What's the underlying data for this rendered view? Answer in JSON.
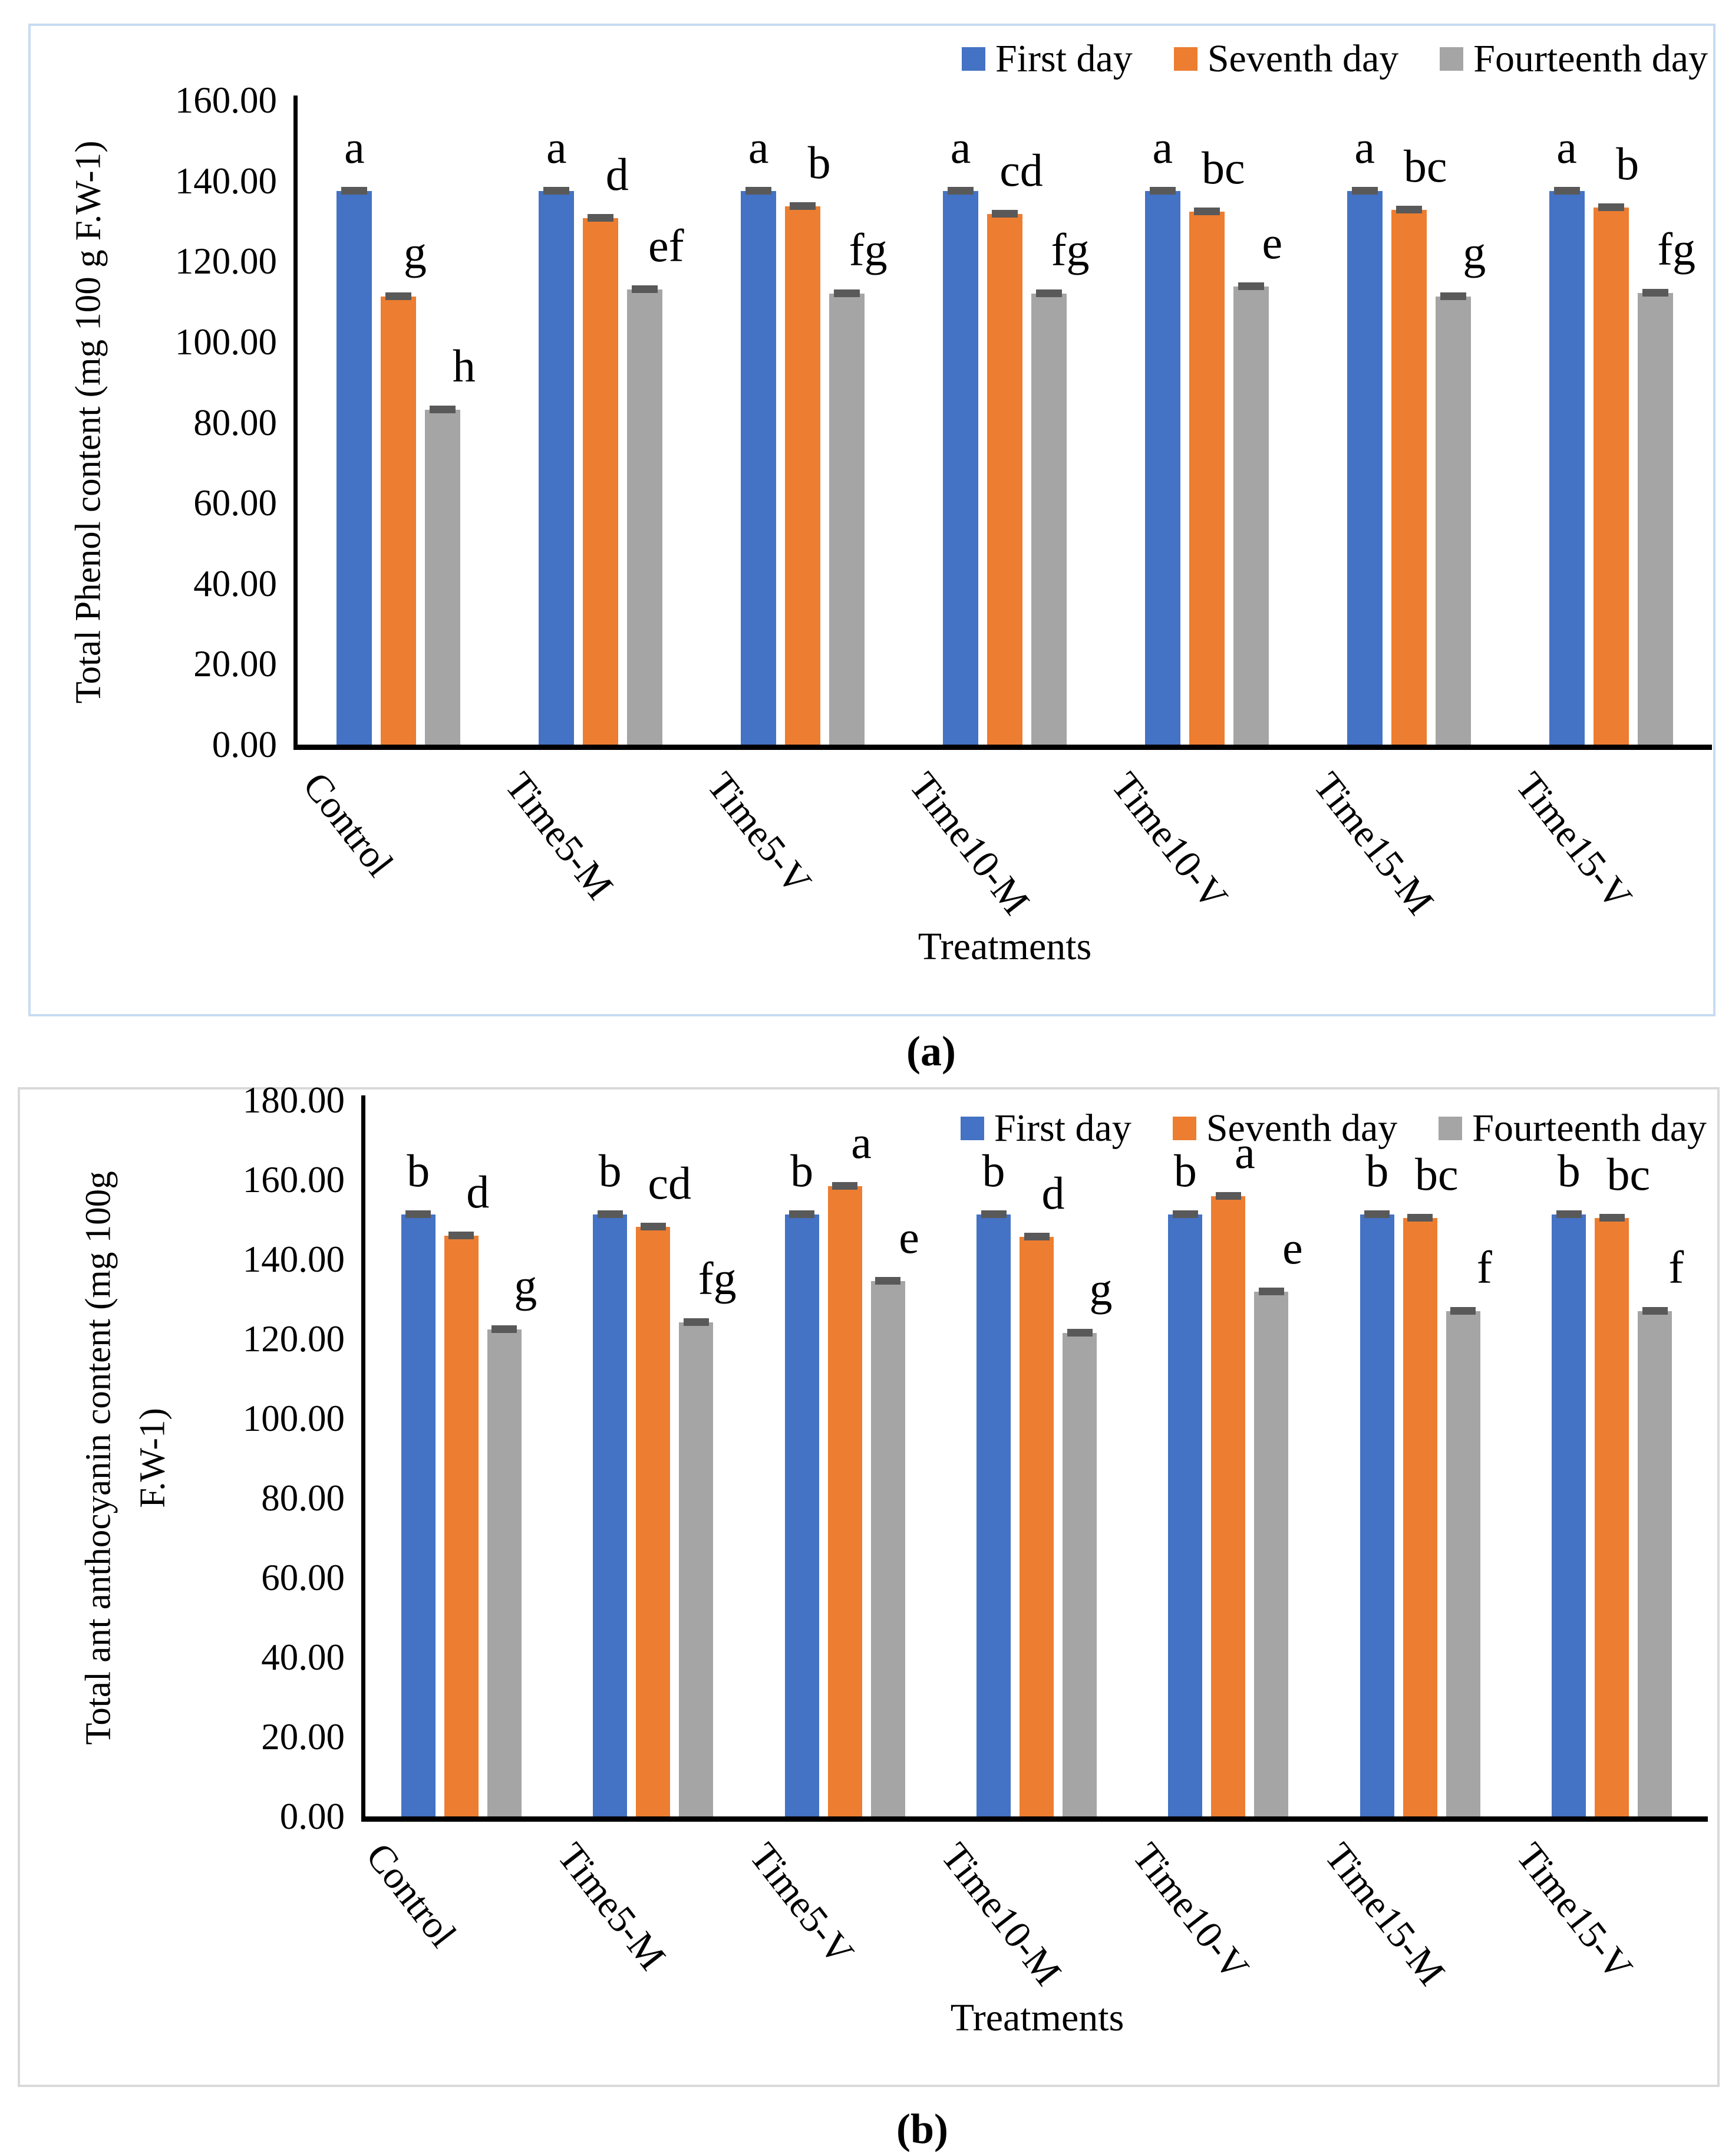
{
  "figure": {
    "captions": {
      "a": "(a)",
      "b": "(b)"
    }
  },
  "colors": {
    "first_day": "#4472C4",
    "seventh_day": "#ED7D31",
    "fourteenth_day": "#A5A5A5",
    "error_cap": "#595959",
    "axis": "#000000",
    "panel_a_border": "#C7DBF2",
    "panel_b_border": "#D9D9D9"
  },
  "chart_data": [
    {
      "id": "a",
      "type": "bar",
      "title": "",
      "caption": "(a)",
      "ylabel": "Total Phenol content (mg 100 g F.W-1)",
      "xlabel": "Treatments",
      "ylim": [
        0,
        160
      ],
      "ytick_step": 20,
      "ytick_labels": [
        "160.00",
        "140.00",
        "120.00",
        "100.00",
        "80.00",
        "60.00",
        "40.00",
        "20.00",
        "0.00"
      ],
      "grid": false,
      "legend_position": "top-right",
      "error_bars": true,
      "categories": [
        "Control",
        "Time5-M",
        "Time5-V",
        "Time10-M",
        "Time10-V",
        "Time15-M",
        "Time15-V"
      ],
      "legend": [
        "First day",
        "Seventh day",
        "Fourteenth day"
      ],
      "series": [
        {
          "name": "First day",
          "color": "#4472C4",
          "values": [
            137.5,
            137.5,
            137.5,
            137.5,
            137.5,
            137.5,
            137.5
          ],
          "letters": [
            "a",
            "a",
            "a",
            "a",
            "a",
            "a",
            "a"
          ]
        },
        {
          "name": "Seventh day",
          "color": "#ED7D31",
          "values": [
            111.3,
            130.7,
            133.6,
            131.8,
            132.4,
            132.8,
            133.4
          ],
          "letters": [
            "g",
            "d",
            "b",
            "cd",
            "bc",
            "bc",
            "b"
          ]
        },
        {
          "name": "Fourteenth day",
          "color": "#A5A5A5",
          "values": [
            83.2,
            113.0,
            112.0,
            112.0,
            113.8,
            111.2,
            112.2
          ],
          "letters": [
            "h",
            "ef",
            "fg",
            "fg",
            "e",
            "g",
            "fg"
          ]
        }
      ]
    },
    {
      "id": "b",
      "type": "bar",
      "title": "",
      "caption": "(b)",
      "ylabel": "Total ant anthocyanin content (mg 100g\nF.W-1)",
      "xlabel": "Treatments",
      "ylim": [
        0,
        180
      ],
      "ytick_step": 20,
      "ytick_labels": [
        "180.00",
        "160.00",
        "140.00",
        "120.00",
        "100.00",
        "80.00",
        "60.00",
        "40.00",
        "20.00",
        "0.00"
      ],
      "grid": false,
      "legend_position": "top-right",
      "error_bars": true,
      "categories": [
        "Control",
        "Time5-M",
        "Time5-V",
        "Time10-M",
        "Time10-V",
        "Time15-M",
        "Time15-V"
      ],
      "legend": [
        "First day",
        "Seventh day",
        "Fourteenth day"
      ],
      "series": [
        {
          "name": "First day",
          "color": "#4472C4",
          "values": [
            151.2,
            151.2,
            151.2,
            151.2,
            151.2,
            151.2,
            151.2
          ],
          "letters": [
            "b",
            "b",
            "b",
            "b",
            "b",
            "b",
            "b"
          ]
        },
        {
          "name": "Seventh day",
          "color": "#ED7D31",
          "values": [
            146.0,
            148.2,
            158.3,
            145.7,
            155.8,
            150.4,
            150.4
          ],
          "letters": [
            "d",
            "cd",
            "a",
            "d",
            "a",
            "bc",
            "bc"
          ]
        },
        {
          "name": "Fourteenth day",
          "color": "#A5A5A5",
          "values": [
            122.3,
            124.2,
            134.5,
            121.5,
            131.8,
            126.9,
            126.9
          ],
          "letters": [
            "g",
            "fg",
            "e",
            "g",
            "e",
            "f",
            "f"
          ]
        }
      ]
    }
  ]
}
